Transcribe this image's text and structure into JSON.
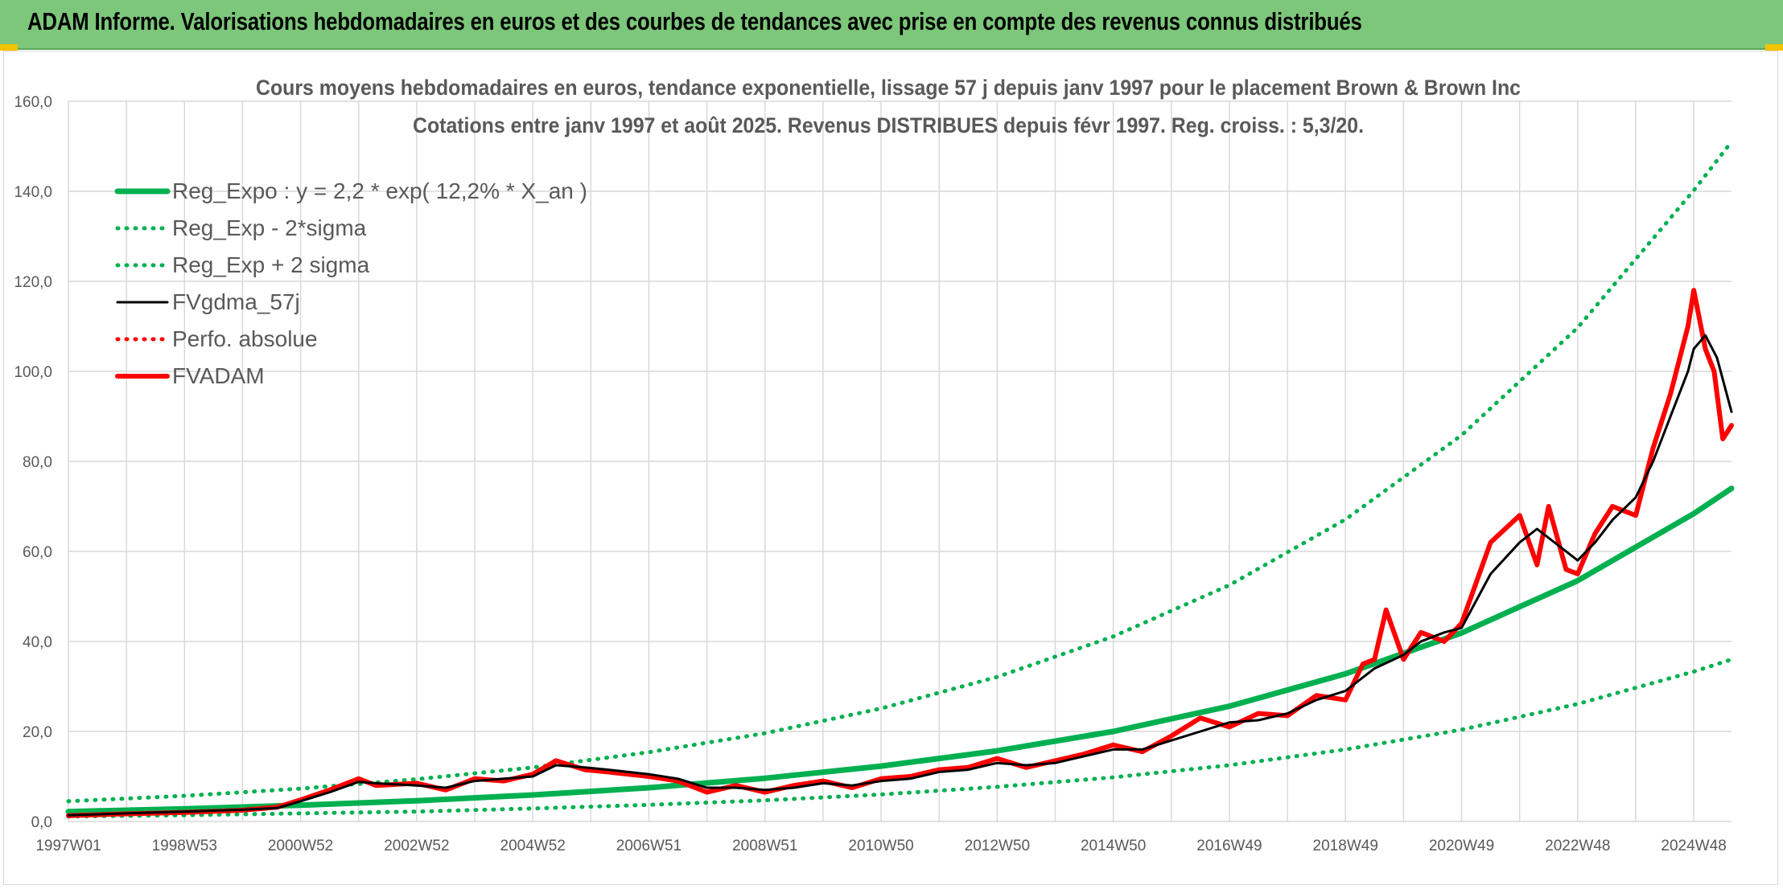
{
  "banner": {
    "title": "ADAM Informe. Valorisations hebdomadaires en euros et des courbes de tendances avec prise en compte des revenus connus distribués"
  },
  "colors": {
    "banner_bg": "#7cc77a",
    "regression": "#00b050",
    "gdma": "#000000",
    "fvadam": "#ff0000",
    "grid": "#d9d9d9",
    "text": "#595959"
  },
  "chart_data": {
    "type": "line",
    "title": "Cours moyens hebdomadaires en euros, tendance exponentielle, lissage 57 j depuis janv 1997 pour le placement Brown & Brown Inc",
    "subtitle": "Cotations entre janv 1997 et août 2025. Revenus DISTRIBUES depuis févr 1997. Reg. croiss. : 5,3/20.",
    "xlabel": "",
    "ylabel": "",
    "ylim": [
      0,
      160
    ],
    "y_ticks": [
      "0,0",
      "20,0",
      "40,0",
      "60,0",
      "80,0",
      "100,0",
      "120,0",
      "140,0",
      "160,0"
    ],
    "x_range_years": [
      1997.0,
      2025.65
    ],
    "x_tick_labels": [
      "1997W01",
      "1998W53",
      "2000W52",
      "2002W52",
      "2004W52",
      "2006W51",
      "2008W51",
      "2010W50",
      "2012W50",
      "2014W50",
      "2016W49",
      "2018W49",
      "2020W49",
      "2022W48",
      "2024W48"
    ],
    "x_tick_years": [
      1997,
      1999,
      2001,
      2003,
      2005,
      2007,
      2009,
      2011,
      2013,
      2015,
      2017,
      2019,
      2021,
      2023,
      2025
    ],
    "grid": true,
    "legend_position": "top-left",
    "series": [
      {
        "name": "Reg_Expo : y = 2,2 * exp( 12,2% *  X_an )",
        "style": "solid-thick",
        "color": "#00b050",
        "x": [
          1997,
          1999,
          2001,
          2003,
          2005,
          2007,
          2009,
          2011,
          2013,
          2015,
          2017,
          2019,
          2021,
          2023,
          2025,
          2025.65
        ],
        "y": [
          2.2,
          2.8,
          3.6,
          4.6,
          5.9,
          7.5,
          9.6,
          12.3,
          15.7,
          20.0,
          25.6,
          32.8,
          41.9,
          53.5,
          68.4,
          74.0
        ]
      },
      {
        "name": "Reg_Exp - 2*sigma",
        "style": "dotted",
        "color": "#00b050",
        "x": [
          1997,
          1999,
          2001,
          2003,
          2005,
          2007,
          2009,
          2011,
          2013,
          2015,
          2017,
          2019,
          2021,
          2023,
          2025,
          2025.65
        ],
        "y": [
          1.1,
          1.4,
          1.8,
          2.2,
          2.9,
          3.7,
          4.7,
          6.0,
          7.7,
          9.8,
          12.5,
          16.0,
          20.4,
          26.1,
          33.3,
          36.0
        ]
      },
      {
        "name": "Reg_Exp + 2 sigma",
        "style": "dotted",
        "color": "#00b050",
        "x": [
          1997,
          1999,
          2001,
          2003,
          2005,
          2007,
          2009,
          2011,
          2013,
          2015,
          2017,
          2019,
          2021,
          2023,
          2025,
          2025.65
        ],
        "y": [
          4.5,
          5.7,
          7.3,
          9.4,
          12.0,
          15.4,
          19.6,
          25.1,
          32.1,
          41.1,
          52.5,
          67.1,
          85.8,
          109.7,
          140.2,
          151.0
        ]
      },
      {
        "name": "FVgdma_57j",
        "style": "solid",
        "color": "#000000",
        "x": [
          1997.0,
          1998.0,
          1999.0,
          2000.0,
          2000.6,
          2001.0,
          2001.5,
          2002.0,
          2002.3,
          2003.0,
          2003.5,
          2004.0,
          2004.5,
          2005.0,
          2005.4,
          2005.9,
          2006.3,
          2007.0,
          2007.5,
          2008.0,
          2008.5,
          2009.0,
          2009.5,
          2010.0,
          2010.5,
          2011.0,
          2011.5,
          2012.0,
          2012.5,
          2013.0,
          2013.5,
          2014.0,
          2014.5,
          2015.0,
          2015.5,
          2016.0,
          2016.5,
          2017.0,
          2017.5,
          2018.0,
          2018.5,
          2019.0,
          2019.5,
          2020.0,
          2020.3,
          2020.7,
          2021.0,
          2021.5,
          2022.0,
          2022.3,
          2022.5,
          2022.8,
          2023.0,
          2023.3,
          2023.6,
          2024.0,
          2024.3,
          2024.6,
          2024.9,
          2025.0,
          2025.2,
          2025.4,
          2025.65
        ],
        "y": [
          1.4,
          1.8,
          2.2,
          2.6,
          3.0,
          4.5,
          6.5,
          8.8,
          8.5,
          8.0,
          7.5,
          9.0,
          9.5,
          10.0,
          12.5,
          12.0,
          11.5,
          10.5,
          9.5,
          7.5,
          7.5,
          7.0,
          7.5,
          8.5,
          8.0,
          9.0,
          9.5,
          11.0,
          11.5,
          13.0,
          12.5,
          13.0,
          14.5,
          16.0,
          16.0,
          18.0,
          20.0,
          22.0,
          22.5,
          24.0,
          27.0,
          29.0,
          34.0,
          37.0,
          40.0,
          42.0,
          43.0,
          55.0,
          62.0,
          65.0,
          63.0,
          60.0,
          58.0,
          62.0,
          67.0,
          72.0,
          80.0,
          90.0,
          100.0,
          105.0,
          108.0,
          103.0,
          91.0
        ]
      },
      {
        "name": "Perfo. absolue",
        "style": "dotted",
        "color": "#ff0000",
        "x": [],
        "y": []
      },
      {
        "name": "FVADAM",
        "style": "solid-thick",
        "color": "#ff0000",
        "x": [
          1997.0,
          1998.0,
          1999.0,
          2000.0,
          2000.6,
          2001.0,
          2001.5,
          2002.0,
          2002.3,
          2003.0,
          2003.5,
          2004.0,
          2004.5,
          2005.0,
          2005.4,
          2005.9,
          2006.3,
          2007.0,
          2007.5,
          2008.0,
          2008.5,
          2009.0,
          2009.5,
          2010.0,
          2010.5,
          2011.0,
          2011.5,
          2012.0,
          2012.5,
          2013.0,
          2013.5,
          2014.0,
          2014.5,
          2015.0,
          2015.5,
          2016.0,
          2016.5,
          2017.0,
          2017.5,
          2018.0,
          2018.5,
          2019.0,
          2019.3,
          2019.5,
          2019.7,
          2020.0,
          2020.3,
          2020.7,
          2021.0,
          2021.5,
          2022.0,
          2022.3,
          2022.5,
          2022.8,
          2023.0,
          2023.3,
          2023.6,
          2024.0,
          2024.3,
          2024.6,
          2024.9,
          2025.0,
          2025.2,
          2025.35,
          2025.5,
          2025.65
        ],
        "y": [
          1.3,
          1.7,
          2.0,
          2.5,
          3.2,
          4.8,
          7.0,
          9.5,
          8.0,
          8.5,
          7.0,
          9.5,
          9.0,
          10.5,
          13.5,
          11.5,
          11.0,
          10.0,
          9.0,
          6.5,
          8.0,
          6.5,
          8.0,
          9.0,
          7.5,
          9.5,
          10.0,
          11.5,
          12.0,
          14.0,
          12.0,
          13.5,
          15.0,
          17.0,
          15.5,
          19.0,
          23.0,
          21.0,
          24.0,
          23.5,
          28.0,
          27.0,
          35.0,
          36.0,
          47.0,
          36.0,
          42.0,
          40.0,
          44.0,
          62.0,
          68.0,
          57.0,
          70.0,
          56.0,
          55.0,
          64.0,
          70.0,
          68.0,
          83.0,
          95.0,
          110.0,
          118.0,
          105.0,
          100.0,
          85.0,
          88.0
        ]
      }
    ]
  }
}
